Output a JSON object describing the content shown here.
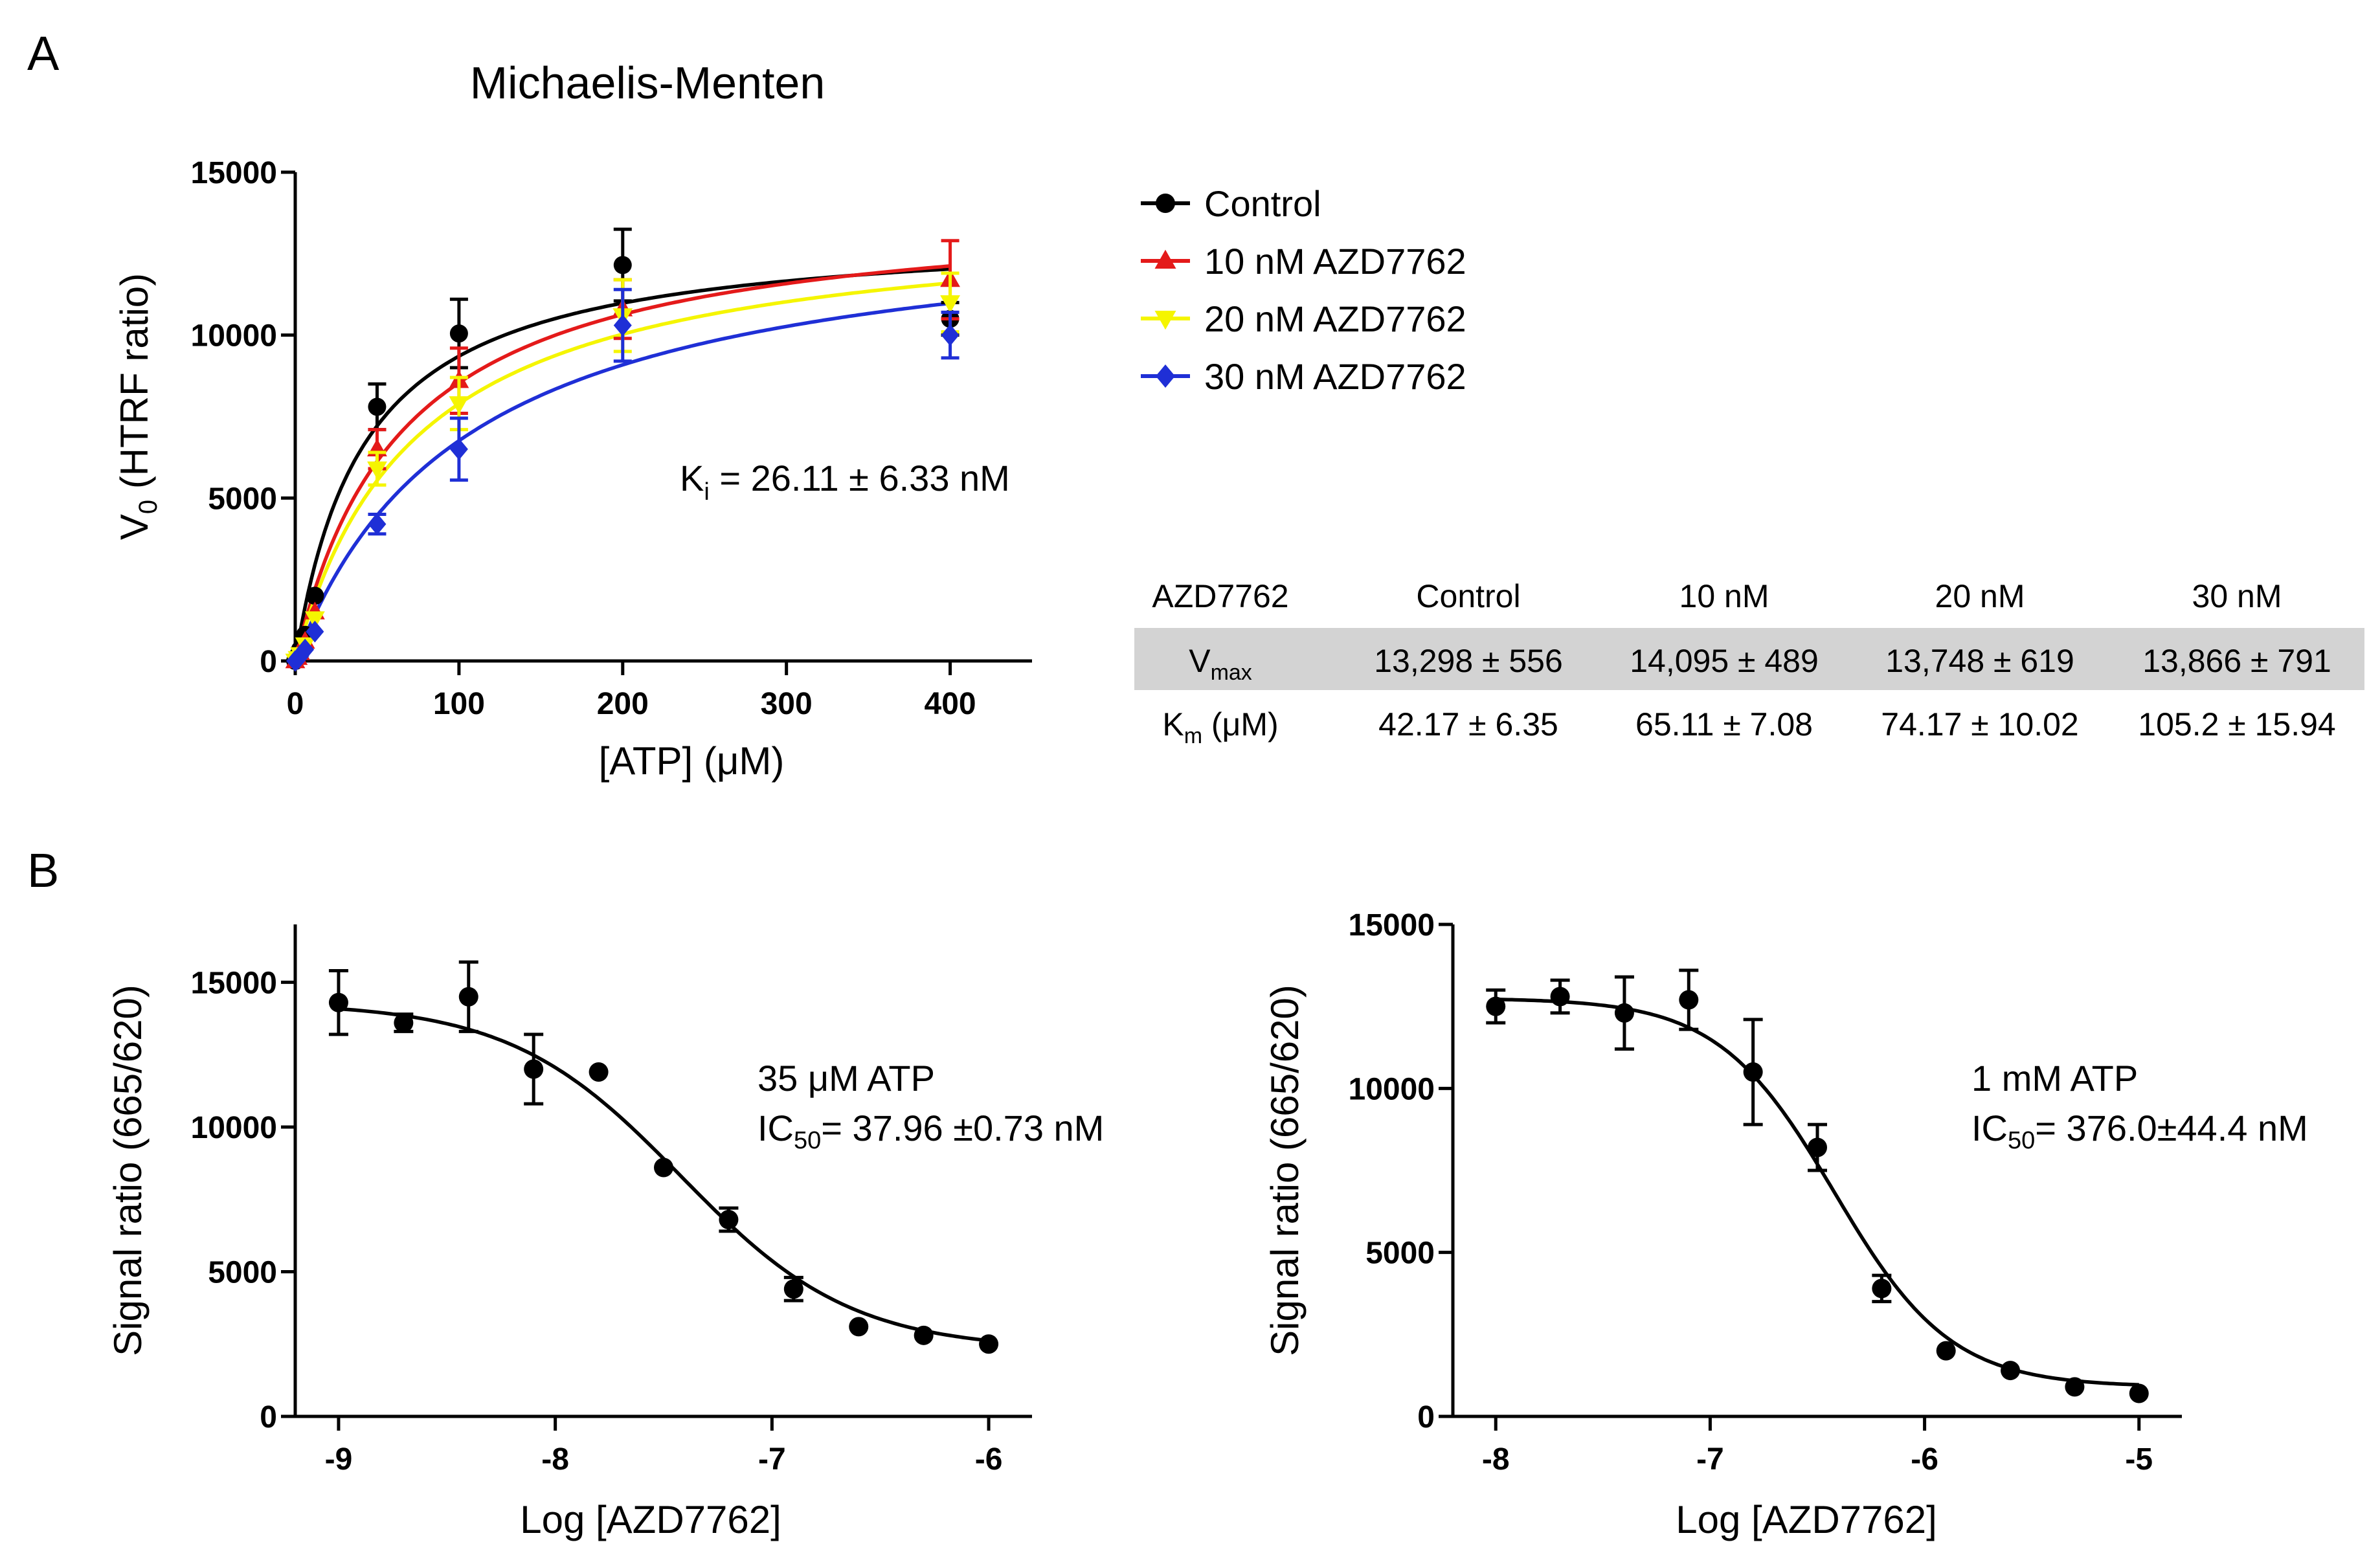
{
  "panels": {
    "a_label": "A",
    "b_label": "B"
  },
  "chart_data": [
    {
      "type": "scatter",
      "id": "michaelis",
      "title": "Michaelis-Menten",
      "xlabel": "[ATP] (μM)",
      "ylabel_main": "V",
      "ylabel_sub": "0",
      "ylabel_rest": " (HTRF ratio)",
      "xlim": [
        0,
        450
      ],
      "ylim": [
        0,
        15000
      ],
      "xticks": [
        0,
        100,
        200,
        300,
        400
      ],
      "yticks": [
        0,
        5000,
        10000,
        15000
      ],
      "annotation": {
        "main": "K",
        "sub": "i",
        "rest": " = 26.11  ± 6.33 nM"
      },
      "series": [
        {
          "name": "Control",
          "color": "#000000",
          "marker": "circle",
          "fit": {
            "vmax": 13298,
            "km": 42.17
          },
          "x": [
            0,
            1.5,
            3,
            6,
            12,
            50,
            100,
            200,
            400
          ],
          "y": [
            0,
            150,
            350,
            800,
            2000,
            7800,
            10050,
            12150,
            10500
          ],
          "err": [
            0,
            0,
            0,
            0,
            0,
            700,
            1050,
            1100,
            500
          ]
        },
        {
          "name": "10 nM AZD7762",
          "color": "#e41a1a",
          "marker": "triangle-up",
          "fit": {
            "vmax": 14095,
            "km": 65.11
          },
          "x": [
            0,
            1.5,
            3,
            6,
            12,
            50,
            100,
            200,
            400
          ],
          "y": [
            0,
            100,
            250,
            600,
            1500,
            6500,
            8600,
            10800,
            11700
          ],
          "err": [
            0,
            0,
            0,
            0,
            0,
            600,
            1000,
            900,
            1200
          ]
        },
        {
          "name": "20 nM AZD7762",
          "color": "#f5f500",
          "marker": "triangle-down",
          "fit": {
            "vmax": 13748,
            "km": 74.17
          },
          "x": [
            0,
            1.5,
            3,
            6,
            12,
            50,
            100,
            200,
            400
          ],
          "y": [
            0,
            80,
            200,
            500,
            1300,
            5900,
            7900,
            10600,
            11000
          ],
          "err": [
            0,
            0,
            0,
            0,
            0,
            500,
            800,
            1100,
            900
          ]
        },
        {
          "name": "30 nM AZD7762",
          "color": "#1f2fd6",
          "marker": "diamond",
          "fit": {
            "vmax": 13866,
            "km": 105.2
          },
          "x": [
            0,
            1.5,
            3,
            6,
            12,
            50,
            100,
            200,
            400
          ],
          "y": [
            0,
            60,
            150,
            350,
            900,
            4200,
            6500,
            10300,
            10000
          ],
          "err": [
            0,
            0,
            0,
            0,
            0,
            300,
            950,
            1100,
            700
          ]
        }
      ]
    },
    {
      "type": "scatter",
      "id": "ic50_35",
      "xlabel": "Log [AZD7762]",
      "ylabel": "Signal ratio (665/620)",
      "xlim": [
        -9.2,
        -5.8
      ],
      "ylim": [
        0,
        17000
      ],
      "xticks": [
        -9,
        -8,
        -7,
        -6
      ],
      "yticks": [
        0,
        5000,
        10000,
        15000
      ],
      "fit": {
        "top": 14300,
        "bottom": 2300,
        "logic50": -7.42,
        "hill": 1.1
      },
      "annotation_line1": "35 μM ATP",
      "annotation_ic": "IC",
      "annotation_sub": "50",
      "annotation_rest": "= 37.96 ±0.73 nM",
      "x": [
        -9,
        -8.7,
        -8.4,
        -8.1,
        -7.8,
        -7.5,
        -7.2,
        -6.9,
        -6.6,
        -6.3,
        -6
      ],
      "y": [
        14300,
        13600,
        14500,
        12000,
        11900,
        8600,
        6800,
        4400,
        3100,
        2800,
        2500
      ],
      "err": [
        1100,
        300,
        1200,
        1200,
        0,
        0,
        400,
        400,
        0,
        0,
        0
      ]
    },
    {
      "type": "scatter",
      "id": "ic50_1mM",
      "xlabel": "Log [AZD7762]",
      "ylabel": "Signal ratio (665/620)",
      "xlim": [
        -8.2,
        -4.8
      ],
      "ylim": [
        0,
        15000
      ],
      "xticks": [
        -8,
        -7,
        -6,
        -5
      ],
      "yticks": [
        0,
        5000,
        10000,
        15000
      ],
      "fit": {
        "top": 12750,
        "bottom": 900,
        "logic50": -6.42,
        "hill": 1.6
      },
      "annotation_line1": "1 mM ATP",
      "annotation_ic": "IC",
      "annotation_sub": "50",
      "annotation_rest": "= 376.0±44.4 nM",
      "x": [
        -8,
        -7.7,
        -7.4,
        -7.1,
        -6.8,
        -6.5,
        -6.2,
        -5.9,
        -5.6,
        -5.3,
        -5
      ],
      "y": [
        12500,
        12800,
        12300,
        12700,
        10500,
        8200,
        3900,
        2000,
        1400,
        900,
        700
      ],
      "err": [
        500,
        500,
        1100,
        900,
        1600,
        700,
        400,
        0,
        0,
        0,
        0
      ]
    }
  ],
  "kinetics_table": {
    "header": [
      "AZD7762",
      "Control",
      "10 nM",
      "20 nM",
      "30 nM"
    ],
    "rows": [
      {
        "label_main": "V",
        "label_sub": "max",
        "label_rest": "",
        "values": [
          "13,298 ± 556",
          "14,095 ± 489",
          "13,748 ± 619",
          "13,866 ± 791"
        ],
        "shaded": true
      },
      {
        "label_main": "K",
        "label_sub": "m",
        "label_rest": " (μM)",
        "values": [
          "42.17 ± 6.35",
          "65.11 ± 7.08",
          "74.17 ± 10.02",
          "105.2 ± 15.94"
        ],
        "shaded": false
      }
    ],
    "shade_color": "#d3d3d3"
  }
}
